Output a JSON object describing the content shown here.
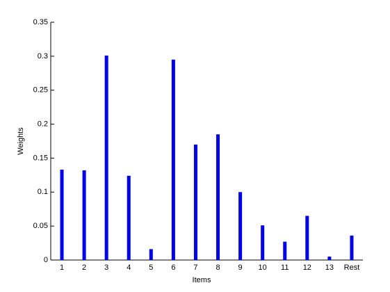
{
  "chart_data": {
    "type": "bar",
    "xlabel": "Items",
    "ylabel": "Weights",
    "categories": [
      "1",
      "2",
      "3",
      "4",
      "5",
      "6",
      "7",
      "8",
      "9",
      "10",
      "11",
      "12",
      "13",
      "Rest"
    ],
    "values": [
      0.133,
      0.132,
      0.301,
      0.124,
      0.016,
      0.295,
      0.17,
      0.185,
      0.1,
      0.051,
      0.027,
      0.065,
      0.005,
      0.036
    ],
    "color": "#0000ff",
    "ylim": [
      0,
      0.35
    ],
    "yticks": [
      0,
      0.05,
      0.1,
      0.15,
      0.2,
      0.25,
      0.3,
      0.35
    ],
    "grid": false
  }
}
